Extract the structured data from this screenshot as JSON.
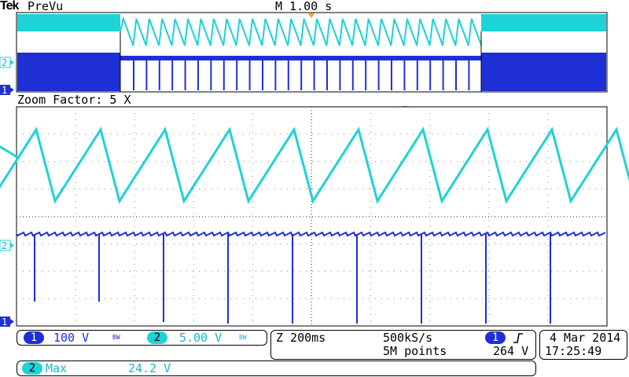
{
  "header": {
    "brand": "Tek",
    "mode": "PreVu",
    "timebase": "M 1.00 s"
  },
  "zoom": {
    "label": "Zoom Factor: 5 X"
  },
  "channels": {
    "ch1": {
      "label": "1",
      "scale": "100 V",
      "bw": "BW",
      "color": "#1f2fd6"
    },
    "ch2": {
      "label": "2",
      "scale": "5.00 V",
      "bw": "BW",
      "color": "#1fd2d6"
    }
  },
  "acquisition": {
    "zoom_time": "Z 200ms",
    "sample_rate": "500kS/s",
    "record_length": "5M points",
    "trigger_source": "1",
    "trigger_slope": "rising-edge-icon",
    "trigger_level": "264 V"
  },
  "datetime": {
    "date": "4 Mar 2014",
    "time": "17:25:49"
  },
  "measurement": {
    "channel": "2",
    "name": "Max",
    "value": "24.2 V"
  }
}
